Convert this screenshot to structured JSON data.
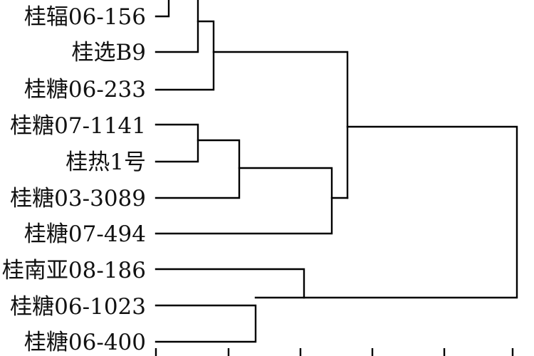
{
  "diagram": {
    "type": "dendrogram",
    "leaves": [
      "桂辐06-156",
      "桂选B9",
      "桂糖06-233",
      "桂糖07-1141",
      "桂热1号",
      "桂糖03-3089",
      "桂糖07-494",
      "桂南亚08-186",
      "桂糖06-1023",
      "桂糖06-400"
    ],
    "line_color": "#000000",
    "text_color": "#111111"
  }
}
